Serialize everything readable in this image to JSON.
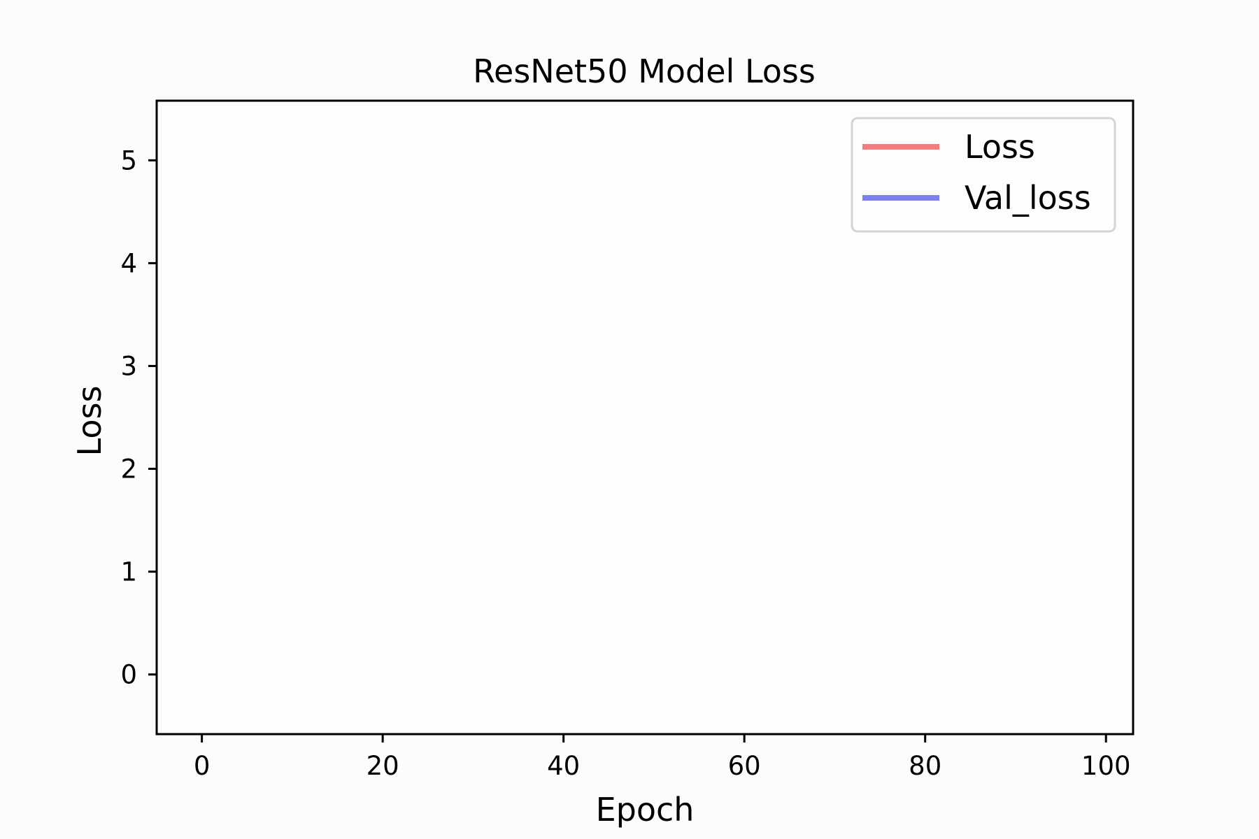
{
  "chart_data": {
    "type": "line",
    "title": "ResNet50 Model Loss",
    "xlabel": "Epoch",
    "ylabel": "Loss",
    "xlim": [
      -5,
      103
    ],
    "ylim": [
      -0.58,
      5.58
    ],
    "xticks": [
      0,
      20,
      40,
      60,
      80,
      100
    ],
    "yticks": [
      0,
      1,
      2,
      3,
      4,
      5
    ],
    "grid": false,
    "legend_position": "top-right",
    "series": [
      {
        "name": "Loss",
        "color": "#f47c7c",
        "x": [],
        "y": []
      },
      {
        "name": "Val_loss",
        "color": "#7f7ff5",
        "x": [],
        "y": []
      }
    ]
  }
}
